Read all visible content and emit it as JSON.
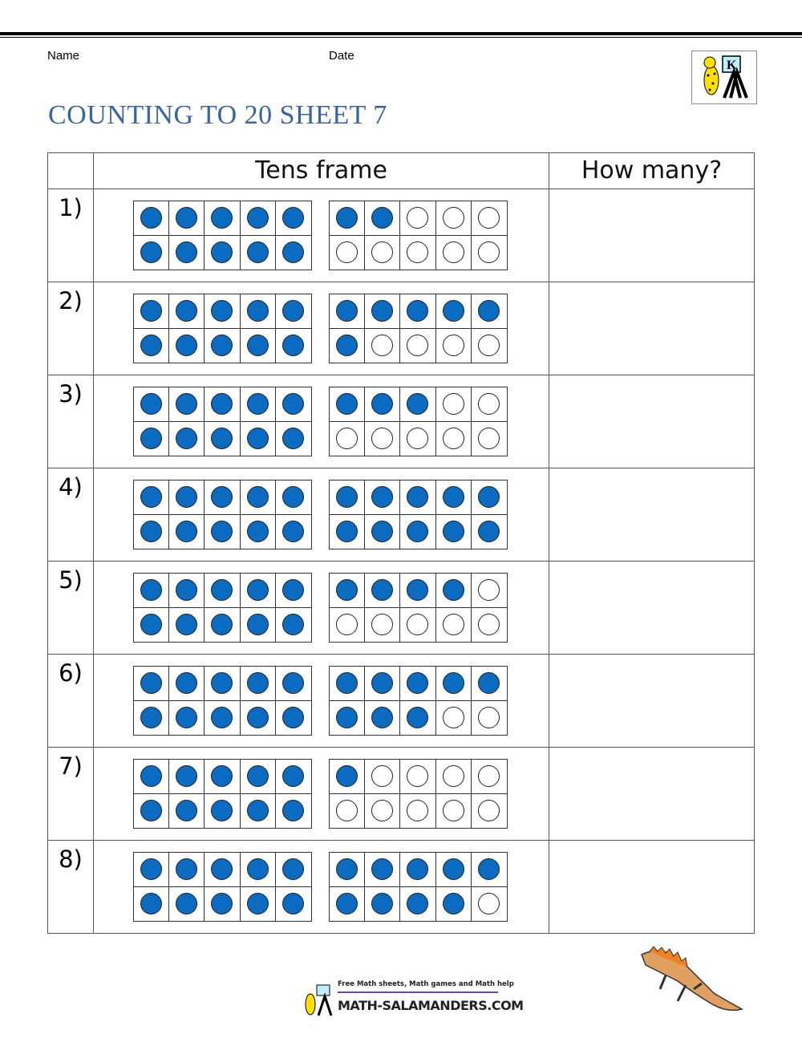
{
  "header": {
    "name_label": "Name",
    "date_label": "Date",
    "logo_letter": "K"
  },
  "title": "COUNTING TO 20 SHEET 7",
  "table": {
    "col_headers": [
      "",
      "Tens frame",
      "How many?"
    ],
    "rows": [
      {
        "label": "1)",
        "counts": [
          10,
          2
        ]
      },
      {
        "label": "2)",
        "counts": [
          10,
          6
        ]
      },
      {
        "label": "3)",
        "counts": [
          10,
          3
        ]
      },
      {
        "label": "4)",
        "counts": [
          10,
          10
        ]
      },
      {
        "label": "5)",
        "counts": [
          10,
          4
        ]
      },
      {
        "label": "6)",
        "counts": [
          10,
          8
        ]
      },
      {
        "label": "7)",
        "counts": [
          10,
          1
        ]
      },
      {
        "label": "8)",
        "counts": [
          10,
          9
        ]
      }
    ]
  },
  "colors": {
    "filled": "#0a6bc0",
    "title": "#3a64a0"
  },
  "footer": {
    "tagline": "Free Math sheets, Math games and Math help",
    "site": "MATH-SALAMANDERS.COM"
  }
}
